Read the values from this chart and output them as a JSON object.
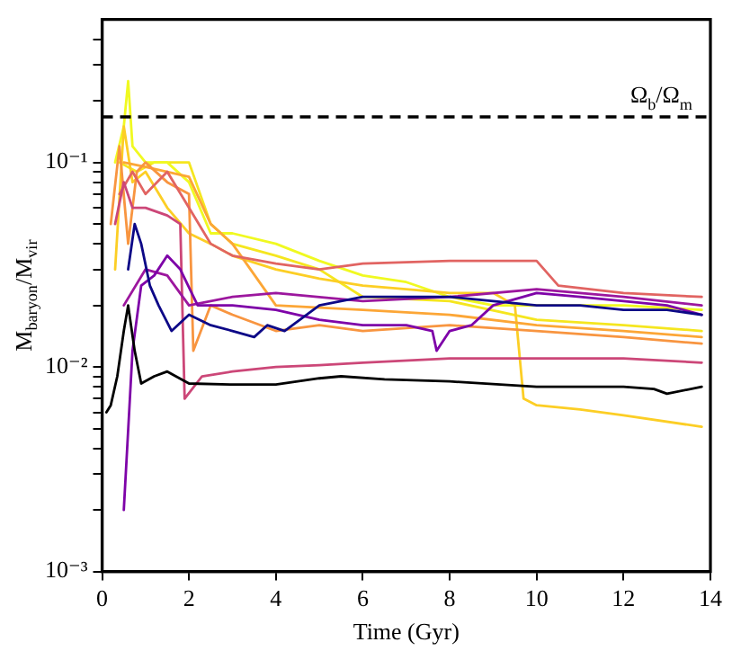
{
  "chart_data": {
    "type": "line",
    "xlabel": "Time (Gyr)",
    "ylabel": "M$_{baryon}$/M$_{vir}$",
    "xlim": [
      0,
      14
    ],
    "xticks": [
      0,
      2,
      4,
      6,
      8,
      10,
      12,
      14
    ],
    "ylim": [
      0.001,
      0.5
    ],
    "log": "y",
    "yticks": [
      {
        "value": 0.001,
        "label": "10⁻³"
      },
      {
        "value": 0.002,
        "label": null
      },
      {
        "value": 0.003,
        "label": null
      },
      {
        "value": 0.004,
        "label": null
      },
      {
        "value": 0.005,
        "label": null
      },
      {
        "value": 0.006,
        "label": null
      },
      {
        "value": 0.007,
        "label": null
      },
      {
        "value": 0.008,
        "label": null
      },
      {
        "value": 0.009,
        "label": null
      },
      {
        "value": 0.01,
        "label": "10⁻²"
      },
      {
        "value": 0.02,
        "label": null
      },
      {
        "value": 0.03,
        "label": null
      },
      {
        "value": 0.04,
        "label": null
      },
      {
        "value": 0.05,
        "label": null
      },
      {
        "value": 0.06,
        "label": null
      },
      {
        "value": 0.07,
        "label": null
      },
      {
        "value": 0.08,
        "label": null
      },
      {
        "value": 0.09,
        "label": null
      },
      {
        "value": 0.1,
        "label": "10⁻¹"
      },
      {
        "value": 0.2,
        "label": null
      },
      {
        "value": 0.3,
        "label": null
      },
      {
        "value": 0.4,
        "label": null
      }
    ],
    "grid": false,
    "legend": false,
    "marker": "none",
    "line_style": "solid",
    "ref_lines": [
      {
        "axis": "y",
        "value": 0.167,
        "label": "Ω$_{b}$/Ω$_{m}$",
        "color": "#000000",
        "line_style": "dashed"
      }
    ],
    "series": [
      {
        "color": "#000000",
        "x": [
          0.1,
          0.2,
          0.35,
          0.5,
          0.6,
          0.75,
          0.9,
          1.2,
          1.5,
          2,
          3,
          4,
          5,
          5.5,
          6.5,
          8,
          10,
          12,
          12.7,
          13,
          13.8
        ],
        "values": [
          0.006,
          0.0065,
          0.009,
          0.015,
          0.02,
          0.012,
          0.0083,
          0.009,
          0.0095,
          0.0083,
          0.0082,
          0.0082,
          0.0088,
          0.009,
          0.0087,
          0.0085,
          0.008,
          0.008,
          0.0078,
          0.0074,
          0.008
        ]
      },
      {
        "color": "#0d0887",
        "x": [
          0.6,
          0.75,
          0.9,
          1.1,
          1.3,
          1.6,
          2,
          2.5,
          3,
          3.5,
          3.8,
          4.2,
          5,
          6,
          7,
          8,
          9,
          10,
          11,
          12,
          13,
          13.8
        ],
        "values": [
          0.03,
          0.05,
          0.04,
          0.025,
          0.02,
          0.015,
          0.018,
          0.016,
          0.015,
          0.014,
          0.016,
          0.015,
          0.02,
          0.022,
          0.022,
          0.022,
          0.021,
          0.02,
          0.02,
          0.019,
          0.019,
          0.018
        ]
      },
      {
        "color": "#7e03a8",
        "x": [
          0.5,
          0.7,
          0.9,
          1.2,
          1.5,
          1.8,
          2.2,
          3,
          4,
          5,
          6,
          7,
          7.6,
          7.7,
          8,
          8.5,
          9,
          10,
          11,
          12,
          13,
          13.8
        ],
        "values": [
          0.002,
          0.012,
          0.025,
          0.028,
          0.035,
          0.03,
          0.02,
          0.02,
          0.019,
          0.017,
          0.016,
          0.016,
          0.015,
          0.012,
          0.015,
          0.016,
          0.02,
          0.023,
          0.022,
          0.021,
          0.02,
          0.018
        ]
      },
      {
        "color": "#9c179e",
        "x": [
          0.5,
          1,
          1.5,
          2,
          3,
          4,
          6,
          8,
          10,
          12,
          13.8
        ],
        "values": [
          0.02,
          0.03,
          0.028,
          0.02,
          0.022,
          0.023,
          0.021,
          0.022,
          0.024,
          0.022,
          0.02
        ]
      },
      {
        "color": "#cc4778",
        "x": [
          0.3,
          0.5,
          0.7,
          1,
          1.5,
          1.8,
          1.9,
          2.3,
          3,
          4,
          5,
          6,
          8,
          10,
          12,
          13.8
        ],
        "values": [
          0.05,
          0.08,
          0.06,
          0.06,
          0.055,
          0.05,
          0.007,
          0.009,
          0.0095,
          0.01,
          0.0102,
          0.0105,
          0.011,
          0.011,
          0.011,
          0.0105
        ]
      },
      {
        "color": "#e16462",
        "x": [
          0.4,
          0.7,
          1,
          1.5,
          2,
          2.5,
          3,
          4,
          5,
          6,
          8,
          10,
          10.5,
          12,
          13.8
        ],
        "values": [
          0.07,
          0.09,
          0.07,
          0.09,
          0.06,
          0.04,
          0.035,
          0.032,
          0.03,
          0.032,
          0.033,
          0.033,
          0.025,
          0.023,
          0.022
        ]
      },
      {
        "color": "#f89540",
        "x": [
          0.2,
          0.4,
          0.6,
          0.8,
          1,
          1.5,
          2,
          2.1,
          2.5,
          3,
          4,
          5,
          6,
          8,
          10,
          12,
          13.8
        ],
        "values": [
          0.05,
          0.12,
          0.04,
          0.09,
          0.1,
          0.08,
          0.07,
          0.012,
          0.02,
          0.018,
          0.015,
          0.016,
          0.015,
          0.016,
          0.015,
          0.014,
          0.013
        ]
      },
      {
        "color": "#fca636",
        "x": [
          0.5,
          1,
          1.5,
          2,
          2.5,
          3,
          4,
          6,
          8,
          10,
          12,
          13.8
        ],
        "values": [
          0.1,
          0.095,
          0.09,
          0.085,
          0.05,
          0.04,
          0.02,
          0.019,
          0.018,
          0.016,
          0.015,
          0.014
        ]
      },
      {
        "color": "#fcce25",
        "x": [
          0.3,
          0.5,
          0.7,
          1,
          1.5,
          2,
          2.5,
          3,
          4,
          5,
          6,
          7,
          8,
          9,
          9.5,
          9.7,
          10,
          11,
          12,
          13.8
        ],
        "values": [
          0.03,
          0.15,
          0.08,
          0.09,
          0.06,
          0.045,
          0.04,
          0.035,
          0.03,
          0.027,
          0.025,
          0.024,
          0.023,
          0.023,
          0.02,
          0.007,
          0.0065,
          0.0062,
          0.0058,
          0.0051
        ]
      },
      {
        "color": "#f0f921",
        "x": [
          0.3,
          0.5,
          0.6,
          0.7,
          1,
          1.5,
          2,
          2.5,
          3,
          4,
          5,
          6,
          7,
          8,
          9,
          10,
          12,
          13.8
        ],
        "values": [
          0.1,
          0.15,
          0.25,
          0.12,
          0.1,
          0.1,
          0.08,
          0.045,
          0.045,
          0.04,
          0.033,
          0.028,
          0.026,
          0.022,
          0.02,
          0.02,
          0.02,
          0.019
        ]
      },
      {
        "color": "#f5e61f",
        "x": [
          0.4,
          0.8,
          1.2,
          2,
          2.5,
          3,
          4,
          5,
          6,
          8,
          10,
          12,
          13.8
        ],
        "values": [
          0.1,
          0.09,
          0.1,
          0.1,
          0.05,
          0.04,
          0.035,
          0.03,
          0.022,
          0.021,
          0.017,
          0.016,
          0.015
        ]
      }
    ]
  }
}
